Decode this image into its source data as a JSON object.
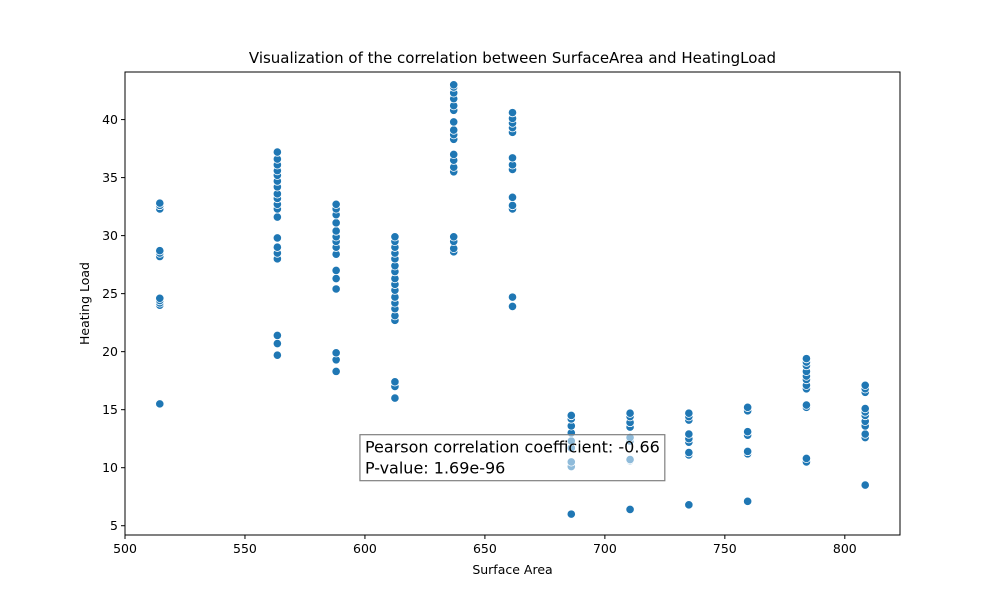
{
  "chart_data": {
    "type": "scatter",
    "title": "Visualization of the correlation between SurfaceArea and HeatingLoad",
    "xlabel": "Surface Area",
    "ylabel": "Heating Load",
    "xlim": [
      500,
      823
    ],
    "ylim": [
      4.2,
      44.1
    ],
    "xticks": [
      500,
      550,
      600,
      650,
      700,
      750,
      800
    ],
    "yticks": [
      5,
      10,
      15,
      20,
      25,
      30,
      35,
      40
    ],
    "grid": false,
    "marker_color": "#1f77b4",
    "annotation": {
      "line1": "Pearson correlation coefficient: -0.66",
      "line2": "P-value: 1.69e-96",
      "x": 600,
      "y": 12.5
    },
    "series": [
      {
        "points": [
          [
            514.5,
            15.5
          ],
          [
            514.5,
            24.0
          ],
          [
            514.5,
            24.2
          ],
          [
            514.5,
            24.4
          ],
          [
            514.5,
            24.6
          ],
          [
            514.5,
            28.2
          ],
          [
            514.5,
            28.5
          ],
          [
            514.5,
            28.7
          ],
          [
            514.5,
            32.3
          ],
          [
            514.5,
            32.6
          ],
          [
            514.5,
            32.8
          ],
          [
            563.5,
            19.7
          ],
          [
            563.5,
            20.7
          ],
          [
            563.5,
            21.4
          ],
          [
            563.5,
            28.0
          ],
          [
            563.5,
            28.5
          ],
          [
            563.5,
            29.0
          ],
          [
            563.5,
            29.8
          ],
          [
            563.5,
            31.6
          ],
          [
            563.5,
            32.3
          ],
          [
            563.5,
            32.7
          ],
          [
            563.5,
            33.2
          ],
          [
            563.5,
            33.6
          ],
          [
            563.5,
            34.2
          ],
          [
            563.5,
            34.7
          ],
          [
            563.5,
            35.2
          ],
          [
            563.5,
            35.6
          ],
          [
            563.5,
            36.1
          ],
          [
            563.5,
            36.6
          ],
          [
            563.5,
            37.2
          ],
          [
            588.0,
            18.3
          ],
          [
            588.0,
            19.3
          ],
          [
            588.0,
            19.9
          ],
          [
            588.0,
            25.4
          ],
          [
            588.0,
            26.3
          ],
          [
            588.0,
            27.0
          ],
          [
            588.0,
            28.4
          ],
          [
            588.0,
            29.0
          ],
          [
            588.0,
            29.5
          ],
          [
            588.0,
            29.9
          ],
          [
            588.0,
            30.4
          ],
          [
            588.0,
            31.1
          ],
          [
            588.0,
            31.8
          ],
          [
            588.0,
            32.3
          ],
          [
            588.0,
            32.7
          ],
          [
            612.5,
            16.0
          ],
          [
            612.5,
            17.0
          ],
          [
            612.5,
            17.4
          ],
          [
            612.5,
            22.7
          ],
          [
            612.5,
            23.1
          ],
          [
            612.5,
            23.7
          ],
          [
            612.5,
            24.2
          ],
          [
            612.5,
            24.7
          ],
          [
            612.5,
            25.3
          ],
          [
            612.5,
            25.8
          ],
          [
            612.5,
            26.3
          ],
          [
            612.5,
            26.9
          ],
          [
            612.5,
            27.4
          ],
          [
            612.5,
            28.0
          ],
          [
            612.5,
            28.5
          ],
          [
            612.5,
            29.0
          ],
          [
            612.5,
            29.5
          ],
          [
            612.5,
            29.9
          ],
          [
            637.0,
            28.6
          ],
          [
            637.0,
            28.9
          ],
          [
            637.0,
            29.5
          ],
          [
            637.0,
            29.9
          ],
          [
            637.0,
            35.5
          ],
          [
            637.0,
            35.9
          ],
          [
            637.0,
            36.5
          ],
          [
            637.0,
            37.0
          ],
          [
            637.0,
            38.3
          ],
          [
            637.0,
            38.7
          ],
          [
            637.0,
            39.1
          ],
          [
            637.0,
            39.8
          ],
          [
            637.0,
            40.8
          ],
          [
            637.0,
            41.2
          ],
          [
            637.0,
            41.8
          ],
          [
            637.0,
            42.3
          ],
          [
            637.0,
            42.8
          ],
          [
            637.0,
            43.0
          ],
          [
            661.5,
            23.9
          ],
          [
            661.5,
            24.7
          ],
          [
            661.5,
            32.3
          ],
          [
            661.5,
            32.6
          ],
          [
            661.5,
            33.3
          ],
          [
            661.5,
            35.7
          ],
          [
            661.5,
            36.1
          ],
          [
            661.5,
            36.7
          ],
          [
            661.5,
            38.9
          ],
          [
            661.5,
            39.3
          ],
          [
            661.5,
            39.7
          ],
          [
            661.5,
            40.1
          ],
          [
            661.5,
            40.6
          ],
          [
            686.0,
            6.0
          ],
          [
            686.0,
            10.1
          ],
          [
            686.0,
            10.5
          ],
          [
            686.0,
            11.7
          ],
          [
            686.0,
            12.3
          ],
          [
            686.0,
            13.0
          ],
          [
            686.0,
            13.6
          ],
          [
            686.0,
            14.2
          ],
          [
            686.0,
            14.5
          ],
          [
            710.5,
            6.4
          ],
          [
            710.5,
            10.6
          ],
          [
            710.5,
            10.7
          ],
          [
            710.5,
            12.3
          ],
          [
            710.5,
            12.6
          ],
          [
            710.5,
            13.5
          ],
          [
            710.5,
            13.9
          ],
          [
            710.5,
            14.4
          ],
          [
            710.5,
            14.7
          ],
          [
            735.0,
            6.8
          ],
          [
            735.0,
            11.1
          ],
          [
            735.0,
            11.3
          ],
          [
            735.0,
            12.2
          ],
          [
            735.0,
            12.5
          ],
          [
            735.0,
            12.9
          ],
          [
            735.0,
            14.1
          ],
          [
            735.0,
            14.4
          ],
          [
            735.0,
            14.7
          ],
          [
            759.5,
            7.1
          ],
          [
            759.5,
            11.2
          ],
          [
            759.5,
            11.4
          ],
          [
            759.5,
            12.8
          ],
          [
            759.5,
            13.1
          ],
          [
            759.5,
            14.9
          ],
          [
            759.5,
            15.2
          ],
          [
            784.0,
            10.5
          ],
          [
            784.0,
            10.8
          ],
          [
            784.0,
            15.2
          ],
          [
            784.0,
            15.4
          ],
          [
            784.0,
            16.8
          ],
          [
            784.0,
            17.1
          ],
          [
            784.0,
            17.6
          ],
          [
            784.0,
            17.9
          ],
          [
            784.0,
            18.3
          ],
          [
            784.0,
            18.8
          ],
          [
            784.0,
            19.1
          ],
          [
            784.0,
            19.4
          ],
          [
            808.5,
            8.5
          ],
          [
            808.5,
            12.6
          ],
          [
            808.5,
            12.9
          ],
          [
            808.5,
            13.6
          ],
          [
            808.5,
            14.0
          ],
          [
            808.5,
            14.5
          ],
          [
            808.5,
            14.8
          ],
          [
            808.5,
            15.1
          ],
          [
            808.5,
            16.5
          ],
          [
            808.5,
            16.8
          ],
          [
            808.5,
            17.1
          ]
        ]
      }
    ]
  }
}
